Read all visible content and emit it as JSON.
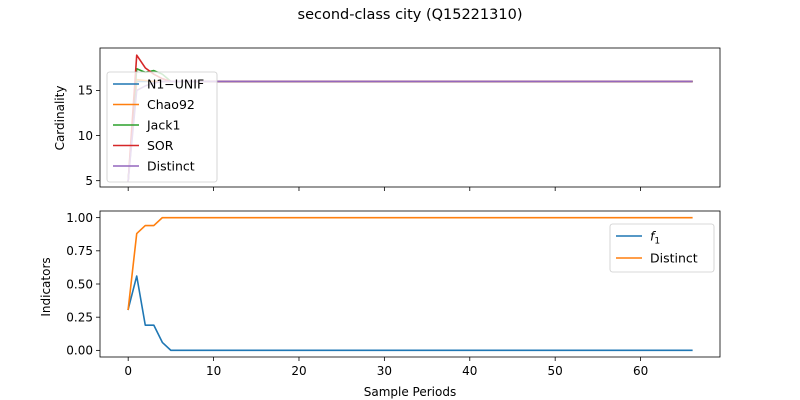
{
  "figure": {
    "title": "second-class city (Q15221310)"
  },
  "chart_data": [
    {
      "type": "line",
      "xlabel": "",
      "ylabel": "Cardinality",
      "xlim": [
        -3.3,
        69.3
      ],
      "ylim": [
        4.3,
        19.7
      ],
      "xticks": [
        0,
        10,
        20,
        30,
        40,
        50,
        60
      ],
      "show_xtick_labels": false,
      "yticks": [
        5,
        10,
        15
      ],
      "legend_position": "upper-left",
      "series": [
        {
          "name": "N1−UNIF",
          "color": "#1f77b4",
          "x": [
            0,
            1,
            2,
            3,
            4,
            5,
            6,
            66
          ],
          "y": [
            5,
            16,
            16,
            16,
            16,
            16,
            16,
            16
          ]
        },
        {
          "name": "Chao92",
          "color": "#ff7f0e",
          "x": [
            0,
            1,
            2,
            3,
            4,
            5,
            6,
            66
          ],
          "y": [
            5,
            16.2,
            16.1,
            16,
            16,
            16,
            16,
            16
          ]
        },
        {
          "name": "Jack1",
          "color": "#2ca02c",
          "x": [
            0,
            1,
            2,
            3,
            4,
            5,
            6,
            66
          ],
          "y": [
            5,
            17.4,
            17,
            17.2,
            16.8,
            16,
            16,
            16
          ]
        },
        {
          "name": "SOR",
          "color": "#d62728",
          "x": [
            0,
            1,
            2,
            3,
            4,
            5,
            6,
            66
          ],
          "y": [
            5,
            18.9,
            17.5,
            16.8,
            16.3,
            16,
            16,
            16
          ]
        },
        {
          "name": "Distinct",
          "color": "#9467bd",
          "x": [
            0,
            1,
            2,
            3,
            4,
            5,
            6,
            66
          ],
          "y": [
            5,
            15,
            15.5,
            15.8,
            16,
            16,
            16,
            16
          ]
        }
      ]
    },
    {
      "type": "line",
      "xlabel": "Sample Periods",
      "ylabel": "Indicators",
      "xlim": [
        -3.3,
        69.3
      ],
      "ylim": [
        -0.05,
        1.05
      ],
      "xticks": [
        0,
        10,
        20,
        30,
        40,
        50,
        60
      ],
      "show_xtick_labels": true,
      "yticks": [
        0.0,
        0.25,
        0.5,
        0.75,
        1.0
      ],
      "ytick_labels": [
        "0.00",
        "0.25",
        "0.50",
        "0.75",
        "1.00"
      ],
      "legend_position": "upper-right",
      "series": [
        {
          "name": "f1",
          "name_main": "f",
          "name_sub": "1",
          "color": "#1f77b4",
          "x": [
            0,
            1,
            2,
            3,
            4,
            5,
            6,
            66
          ],
          "y": [
            0.31,
            0.56,
            0.19,
            0.19,
            0.06,
            0.0,
            0.0,
            0.0
          ]
        },
        {
          "name": "Distinct",
          "color": "#ff7f0e",
          "x": [
            0,
            1,
            2,
            3,
            4,
            5,
            6,
            66
          ],
          "y": [
            0.31,
            0.88,
            0.94,
            0.94,
            1.0,
            1.0,
            1.0,
            1.0
          ]
        }
      ]
    }
  ]
}
